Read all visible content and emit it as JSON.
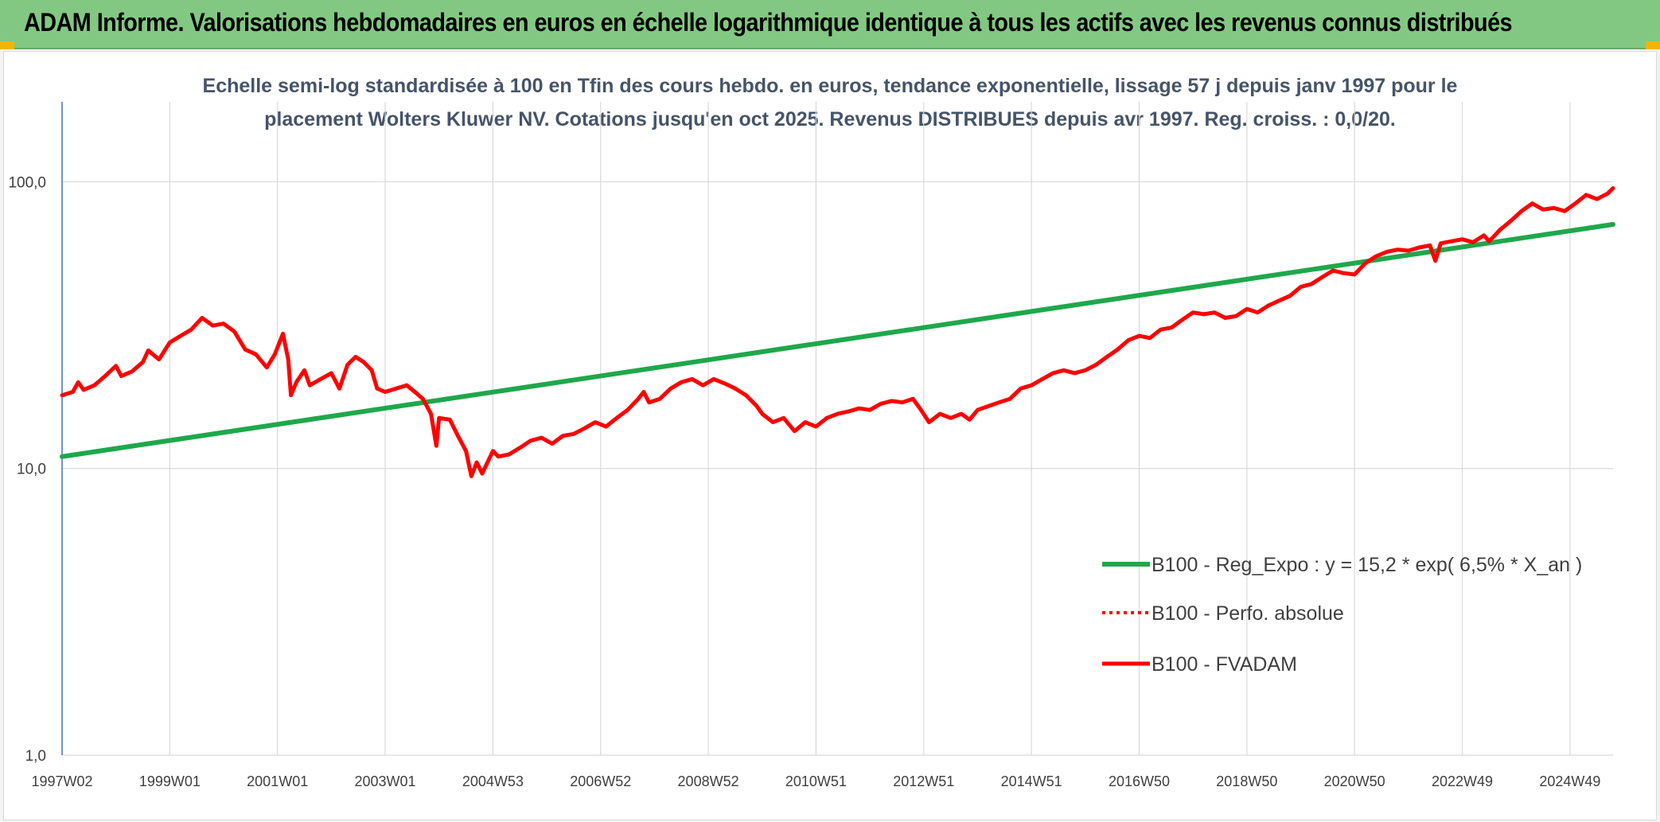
{
  "banner": {
    "title": "ADAM Informe. Valorisations hebdomadaires en euros en échelle logarithmique identique à tous les actifs avec les revenus connus distribués"
  },
  "colors": {
    "banner_bg": "#82c882",
    "reg_line": "#1ea84a",
    "fvadam_line": "#ff0000",
    "perfo_line": "#ff0000",
    "accent_corner": "#f2b500"
  },
  "chart_data": {
    "type": "line",
    "title_lines": [
      "Echelle semi-log standardisée à 100 en Tfin des cours hebdo. en euros, tendance exponentielle, lissage 57 j depuis janv 1997 pour le",
      "placement Wolters Kluwer NV. Cotations jusqu'en oct 2025. Revenus DISTRIBUES depuis avr 1997. Reg. croiss. : 0,0/20."
    ],
    "y_scale": "log",
    "ylim": [
      1,
      190
    ],
    "y_ticks": [
      {
        "value": 1,
        "label": "1,0"
      },
      {
        "value": 10,
        "label": "10,0"
      },
      {
        "value": 100,
        "label": "100,0"
      }
    ],
    "x_range": [
      1997.0,
      2025.8
    ],
    "x_ticks": [
      {
        "x": 1997.0,
        "label": "1997W02"
      },
      {
        "x": 1999.0,
        "label": "1999W01"
      },
      {
        "x": 2001.0,
        "label": "2001W01"
      },
      {
        "x": 2003.0,
        "label": "2003W01"
      },
      {
        "x": 2005.0,
        "label": "2004W53"
      },
      {
        "x": 2007.0,
        "label": "2006W52"
      },
      {
        "x": 2009.0,
        "label": "2008W52"
      },
      {
        "x": 2011.0,
        "label": "2010W51"
      },
      {
        "x": 2013.0,
        "label": "2012W51"
      },
      {
        "x": 2015.0,
        "label": "2014W51"
      },
      {
        "x": 2017.0,
        "label": "2016W50"
      },
      {
        "x": 2019.0,
        "label": "2018W50"
      },
      {
        "x": 2021.0,
        "label": "2020W50"
      },
      {
        "x": 2023.0,
        "label": "2022W49"
      },
      {
        "x": 2025.0,
        "label": "2024W49"
      }
    ],
    "legend": [
      {
        "key": "reg",
        "label": "B100 - Reg_Expo : y = 15,2 * exp( 6,5% *  X_an )",
        "style": "solid-green"
      },
      {
        "key": "perfo",
        "label": "B100 - Perfo. absolue",
        "style": "dotted-red"
      },
      {
        "key": "fvadam",
        "label": "B100 - FVADAM",
        "style": "solid-red"
      }
    ],
    "series": [
      {
        "name": "B100 - Reg_Expo : y = 15,2 * exp( 6,5% *  X_an )",
        "color": "#1ea84a",
        "points": [
          [
            1997.0,
            11.0
          ],
          [
            2025.8,
            71.0
          ]
        ]
      },
      {
        "name": "B100 - FVADAM",
        "color": "#ff0000",
        "points": [
          [
            1997.0,
            18.0
          ],
          [
            1997.2,
            18.5
          ],
          [
            1997.3,
            20.0
          ],
          [
            1997.4,
            18.8
          ],
          [
            1997.6,
            19.5
          ],
          [
            1997.8,
            21.0
          ],
          [
            1998.0,
            22.8
          ],
          [
            1998.1,
            21.0
          ],
          [
            1998.3,
            21.8
          ],
          [
            1998.5,
            23.5
          ],
          [
            1998.6,
            25.8
          ],
          [
            1998.8,
            24.0
          ],
          [
            1999.0,
            27.5
          ],
          [
            1999.2,
            29.0
          ],
          [
            1999.4,
            30.5
          ],
          [
            1999.5,
            32.0
          ],
          [
            1999.6,
            33.5
          ],
          [
            1999.8,
            31.5
          ],
          [
            2000.0,
            32.0
          ],
          [
            2000.2,
            30.0
          ],
          [
            2000.4,
            26.0
          ],
          [
            2000.6,
            25.0
          ],
          [
            2000.8,
            22.5
          ],
          [
            2000.95,
            25.0
          ],
          [
            2001.1,
            29.5
          ],
          [
            2001.2,
            24.0
          ],
          [
            2001.25,
            18.0
          ],
          [
            2001.35,
            20.0
          ],
          [
            2001.5,
            22.0
          ],
          [
            2001.6,
            19.5
          ],
          [
            2001.8,
            20.5
          ],
          [
            2002.0,
            21.5
          ],
          [
            2002.15,
            19.0
          ],
          [
            2002.3,
            23.0
          ],
          [
            2002.45,
            24.5
          ],
          [
            2002.6,
            23.5
          ],
          [
            2002.75,
            22.0
          ],
          [
            2002.85,
            19.0
          ],
          [
            2003.0,
            18.5
          ],
          [
            2003.2,
            19.0
          ],
          [
            2003.4,
            19.5
          ],
          [
            2003.55,
            18.5
          ],
          [
            2003.7,
            17.5
          ],
          [
            2003.85,
            15.5
          ],
          [
            2003.95,
            12.0
          ],
          [
            2004.0,
            15.0
          ],
          [
            2004.2,
            14.8
          ],
          [
            2004.35,
            13.0
          ],
          [
            2004.5,
            11.5
          ],
          [
            2004.6,
            9.4
          ],
          [
            2004.7,
            10.5
          ],
          [
            2004.8,
            9.6
          ],
          [
            2004.9,
            10.5
          ],
          [
            2005.0,
            11.5
          ],
          [
            2005.1,
            11.0
          ],
          [
            2005.3,
            11.2
          ],
          [
            2005.5,
            11.8
          ],
          [
            2005.7,
            12.5
          ],
          [
            2005.9,
            12.8
          ],
          [
            2006.1,
            12.2
          ],
          [
            2006.3,
            13.0
          ],
          [
            2006.5,
            13.2
          ],
          [
            2006.7,
            13.8
          ],
          [
            2006.9,
            14.5
          ],
          [
            2007.1,
            14.0
          ],
          [
            2007.3,
            15.0
          ],
          [
            2007.5,
            16.0
          ],
          [
            2007.7,
            17.5
          ],
          [
            2007.8,
            18.5
          ],
          [
            2007.9,
            17.0
          ],
          [
            2008.1,
            17.5
          ],
          [
            2008.3,
            19.0
          ],
          [
            2008.5,
            20.0
          ],
          [
            2008.7,
            20.5
          ],
          [
            2008.9,
            19.5
          ],
          [
            2009.1,
            20.5
          ],
          [
            2009.3,
            19.8
          ],
          [
            2009.5,
            19.0
          ],
          [
            2009.7,
            18.0
          ],
          [
            2009.9,
            16.5
          ],
          [
            2010.0,
            15.5
          ],
          [
            2010.2,
            14.5
          ],
          [
            2010.4,
            15.0
          ],
          [
            2010.6,
            13.5
          ],
          [
            2010.8,
            14.5
          ],
          [
            2011.0,
            14.0
          ],
          [
            2011.2,
            15.0
          ],
          [
            2011.4,
            15.5
          ],
          [
            2011.6,
            15.8
          ],
          [
            2011.8,
            16.2
          ],
          [
            2012.0,
            16.0
          ],
          [
            2012.2,
            16.8
          ],
          [
            2012.4,
            17.2
          ],
          [
            2012.6,
            17.0
          ],
          [
            2012.8,
            17.5
          ],
          [
            2012.95,
            16.0
          ],
          [
            2013.1,
            14.5
          ],
          [
            2013.3,
            15.5
          ],
          [
            2013.5,
            15.0
          ],
          [
            2013.7,
            15.5
          ],
          [
            2013.85,
            14.8
          ],
          [
            2014.0,
            16.0
          ],
          [
            2014.2,
            16.5
          ],
          [
            2014.4,
            17.0
          ],
          [
            2014.6,
            17.5
          ],
          [
            2014.8,
            19.0
          ],
          [
            2015.0,
            19.5
          ],
          [
            2015.2,
            20.5
          ],
          [
            2015.4,
            21.5
          ],
          [
            2015.6,
            22.0
          ],
          [
            2015.8,
            21.5
          ],
          [
            2016.0,
            22.0
          ],
          [
            2016.2,
            23.0
          ],
          [
            2016.4,
            24.5
          ],
          [
            2016.6,
            26.0
          ],
          [
            2016.8,
            28.0
          ],
          [
            2017.0,
            29.0
          ],
          [
            2017.2,
            28.5
          ],
          [
            2017.4,
            30.5
          ],
          [
            2017.6,
            31.0
          ],
          [
            2017.8,
            33.0
          ],
          [
            2018.0,
            35.0
          ],
          [
            2018.2,
            34.5
          ],
          [
            2018.4,
            35.0
          ],
          [
            2018.6,
            33.5
          ],
          [
            2018.8,
            34.0
          ],
          [
            2019.0,
            36.0
          ],
          [
            2019.2,
            35.0
          ],
          [
            2019.4,
            37.0
          ],
          [
            2019.6,
            38.5
          ],
          [
            2019.8,
            40.0
          ],
          [
            2020.0,
            43.0
          ],
          [
            2020.2,
            44.0
          ],
          [
            2020.4,
            46.5
          ],
          [
            2020.6,
            49.0
          ],
          [
            2020.8,
            48.0
          ],
          [
            2021.0,
            47.5
          ],
          [
            2021.2,
            52.0
          ],
          [
            2021.4,
            55.0
          ],
          [
            2021.6,
            57.0
          ],
          [
            2021.8,
            58.0
          ],
          [
            2022.0,
            57.5
          ],
          [
            2022.2,
            59.0
          ],
          [
            2022.4,
            60.0
          ],
          [
            2022.5,
            53.0
          ],
          [
            2022.6,
            61.0
          ],
          [
            2022.8,
            62.0
          ],
          [
            2023.0,
            63.0
          ],
          [
            2023.2,
            61.5
          ],
          [
            2023.4,
            65.0
          ],
          [
            2023.5,
            62.0
          ],
          [
            2023.7,
            68.0
          ],
          [
            2023.9,
            73.0
          ],
          [
            2024.1,
            79.0
          ],
          [
            2024.3,
            84.0
          ],
          [
            2024.5,
            80.0
          ],
          [
            2024.7,
            81.0
          ],
          [
            2024.9,
            79.0
          ],
          [
            2025.1,
            84.0
          ],
          [
            2025.3,
            90.0
          ],
          [
            2025.5,
            87.0
          ],
          [
            2025.7,
            91.0
          ],
          [
            2025.8,
            95.0
          ]
        ]
      }
    ]
  }
}
